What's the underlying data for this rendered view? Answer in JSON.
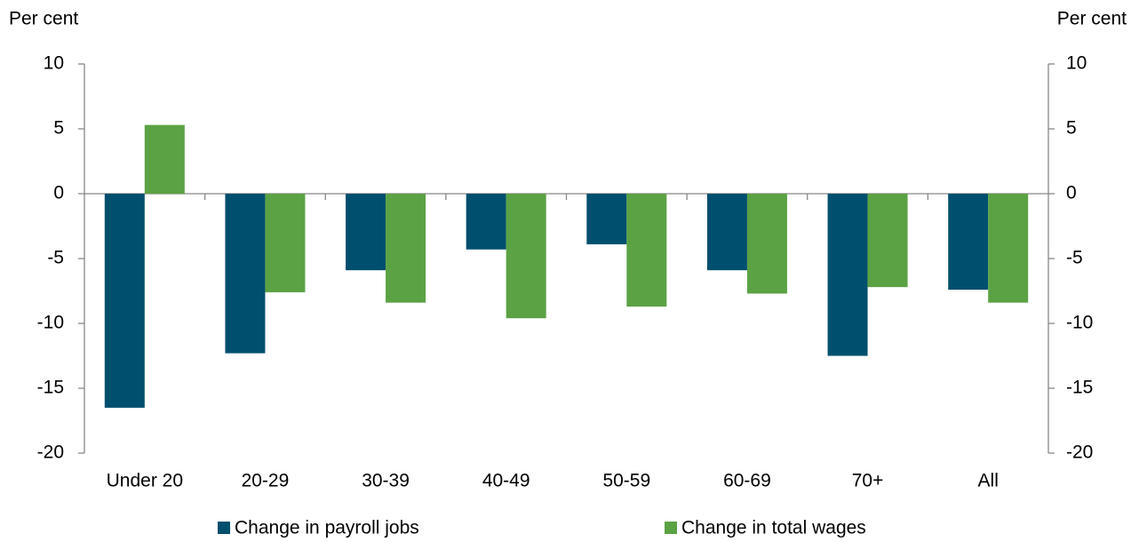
{
  "chart_data": {
    "type": "bar",
    "y_label": "Per cent",
    "y2_label": "Per cent",
    "categories": [
      "Under 20",
      "20-29",
      "30-39",
      "40-49",
      "50-59",
      "60-69",
      "70+",
      "All"
    ],
    "series": [
      {
        "name": "Change in payroll jobs",
        "color": "#004f6e",
        "values": [
          -16.5,
          -12.3,
          -5.9,
          -4.3,
          -3.9,
          -5.9,
          -12.5,
          -7.4
        ]
      },
      {
        "name": "Change in total wages",
        "color": "#5ba244",
        "values": [
          5.3,
          -7.6,
          -8.4,
          -9.6,
          -8.7,
          -7.7,
          -7.2,
          -8.4
        ]
      }
    ],
    "ylim": [
      -20,
      10
    ],
    "yticks": [
      -20,
      -15,
      -10,
      -5,
      0,
      5,
      10
    ],
    "y2lim": [
      -20,
      10
    ],
    "y2ticks": [
      -20,
      -15,
      -10,
      -5,
      0,
      5,
      10
    ],
    "grid": false,
    "legend": "bottom"
  }
}
